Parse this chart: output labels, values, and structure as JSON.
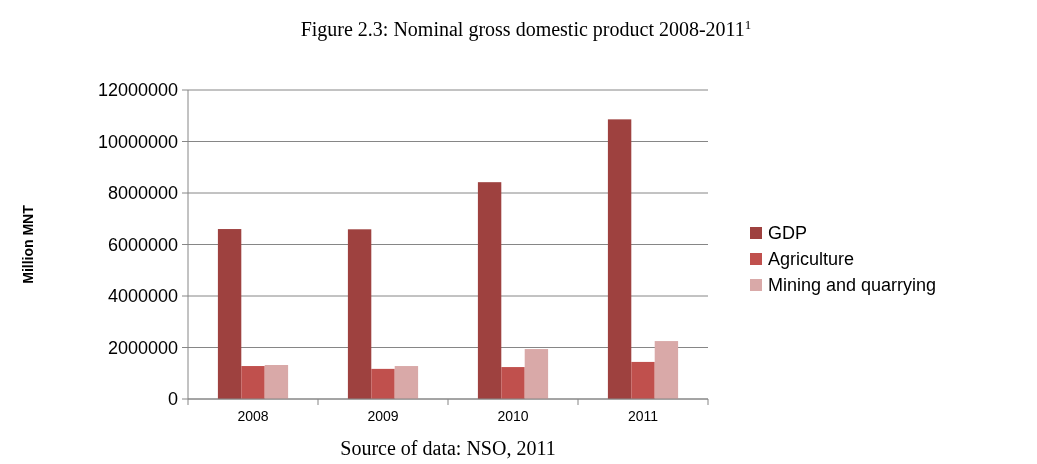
{
  "chart_data": {
    "type": "bar",
    "title": "Figure 2.3: Nominal gross domestic product 2008-2011$^{1}$",
    "ylabel": "Million MNT",
    "categories": [
      "2008",
      "2009",
      "2010",
      "2011"
    ],
    "series": [
      {
        "name": "GDP",
        "color": "#9e413f",
        "values": [
          6600000,
          6590000,
          8420000,
          10860000
        ]
      },
      {
        "name": "Agriculture",
        "color": "#c0504d",
        "values": [
          1280000,
          1170000,
          1240000,
          1440000
        ]
      },
      {
        "name": "Mining and quarrying",
        "color": "#d9a9a8",
        "values": [
          1320000,
          1280000,
          1940000,
          2250000
        ]
      }
    ],
    "ylim": [
      0,
      12000000
    ],
    "yticks": [
      0,
      2000000,
      4000000,
      6000000,
      8000000,
      10000000,
      12000000
    ],
    "grid": "y",
    "legend": "right",
    "annotations": [
      "Source of data: NSO, 2011"
    ]
  }
}
